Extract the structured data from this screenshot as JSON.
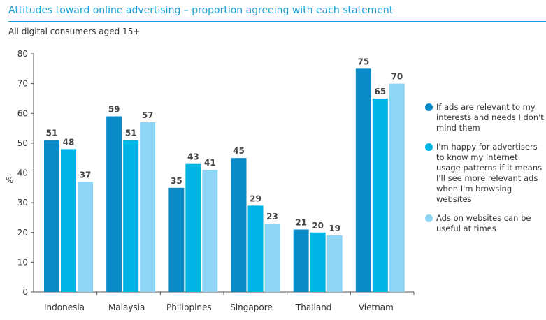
{
  "chart_data": {
    "type": "bar",
    "title": "Attitudes toward online advertising – proportion agreeing with each statement",
    "subtitle": "All digital consumers aged 15+",
    "xlabel": "",
    "ylabel": "%",
    "ylim": [
      0,
      80
    ],
    "yticks": [
      0,
      10,
      20,
      30,
      40,
      50,
      60,
      70,
      80
    ],
    "grid": false,
    "legend_position": "right",
    "categories": [
      "Indonesia",
      "Malaysia",
      "Philippines",
      "Singapore",
      "Thailand",
      "Vietnam"
    ],
    "series": [
      {
        "name": "If ads are relevant to my interests and needs I don't mind them",
        "color": "#0a8ac6",
        "values": [
          51,
          59,
          35,
          45,
          21,
          75
        ]
      },
      {
        "name": "I'm happy for advertisers to know my Internet usage patterns if it means I'll see more relevant ads when I'm browsing websites",
        "color": "#00b4e6",
        "values": [
          48,
          51,
          43,
          29,
          20,
          65
        ]
      },
      {
        "name": "Ads on websites can be useful at times",
        "color": "#8fd5f5",
        "values": [
          37,
          57,
          41,
          23,
          19,
          70
        ]
      }
    ]
  }
}
